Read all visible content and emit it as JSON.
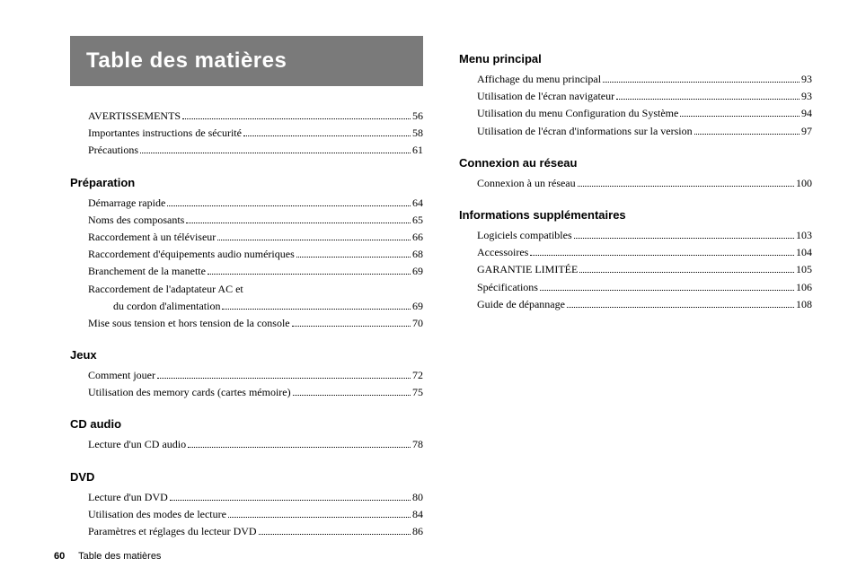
{
  "title": "Table des matières",
  "footer": {
    "pageNumber": "60",
    "label": "Table des matières"
  },
  "leftColumn": {
    "intro": [
      {
        "label": "AVERTISSEMENTS",
        "page": "56"
      },
      {
        "label": "Importantes instructions de sécurité",
        "page": "58"
      },
      {
        "label": "Précautions",
        "page": "61"
      }
    ],
    "sections": [
      {
        "heading": "Préparation",
        "entries": [
          {
            "label": "Démarrage rapide",
            "page": "64"
          },
          {
            "label": "Noms des composants",
            "page": "65"
          },
          {
            "label": "Raccordement à un téléviseur",
            "page": "66"
          },
          {
            "label": "Raccordement d'équipements audio numériques",
            "page": "68"
          },
          {
            "label": "Branchement de la manette",
            "page": "69"
          },
          {
            "label": "Raccordement de l'adaptateur AC et",
            "continuation": true
          },
          {
            "label": "du cordon d'alimentation",
            "page": "69",
            "sub": true
          },
          {
            "label": "Mise sous tension et hors tension de la console",
            "page": "70"
          }
        ]
      },
      {
        "heading": "Jeux",
        "entries": [
          {
            "label": "Comment jouer",
            "page": "72"
          },
          {
            "label": "Utilisation des memory cards (cartes mémoire)",
            "page": "75"
          }
        ]
      },
      {
        "heading": "CD audio",
        "entries": [
          {
            "label": "Lecture d'un CD audio",
            "page": "78"
          }
        ]
      },
      {
        "heading": "DVD",
        "entries": [
          {
            "label": "Lecture d'un DVD",
            "page": "80"
          },
          {
            "label": "Utilisation des modes de lecture",
            "page": "84"
          },
          {
            "label": "Paramètres et réglages du lecteur DVD",
            "page": "86"
          }
        ]
      }
    ]
  },
  "rightColumn": {
    "sections": [
      {
        "heading": "Menu principal",
        "entries": [
          {
            "label": "Affichage du menu principal",
            "page": "93"
          },
          {
            "label": "Utilisation de l'écran navigateur",
            "page": "93"
          },
          {
            "label": "Utilisation du menu Configuration du Système",
            "page": "94"
          },
          {
            "label": "Utilisation de l'écran d'informations sur la version",
            "page": "97"
          }
        ]
      },
      {
        "heading": "Connexion au réseau",
        "entries": [
          {
            "label": "Connexion à un réseau",
            "page": "100"
          }
        ]
      },
      {
        "heading": "Informations supplémentaires",
        "entries": [
          {
            "label": "Logiciels compatibles",
            "page": "103"
          },
          {
            "label": "Accessoires",
            "page": "104"
          },
          {
            "label": "GARANTIE LIMITÉE",
            "page": "105"
          },
          {
            "label": "Spécifications",
            "page": "106"
          },
          {
            "label": "Guide de dépannage",
            "page": "108"
          }
        ]
      }
    ]
  }
}
